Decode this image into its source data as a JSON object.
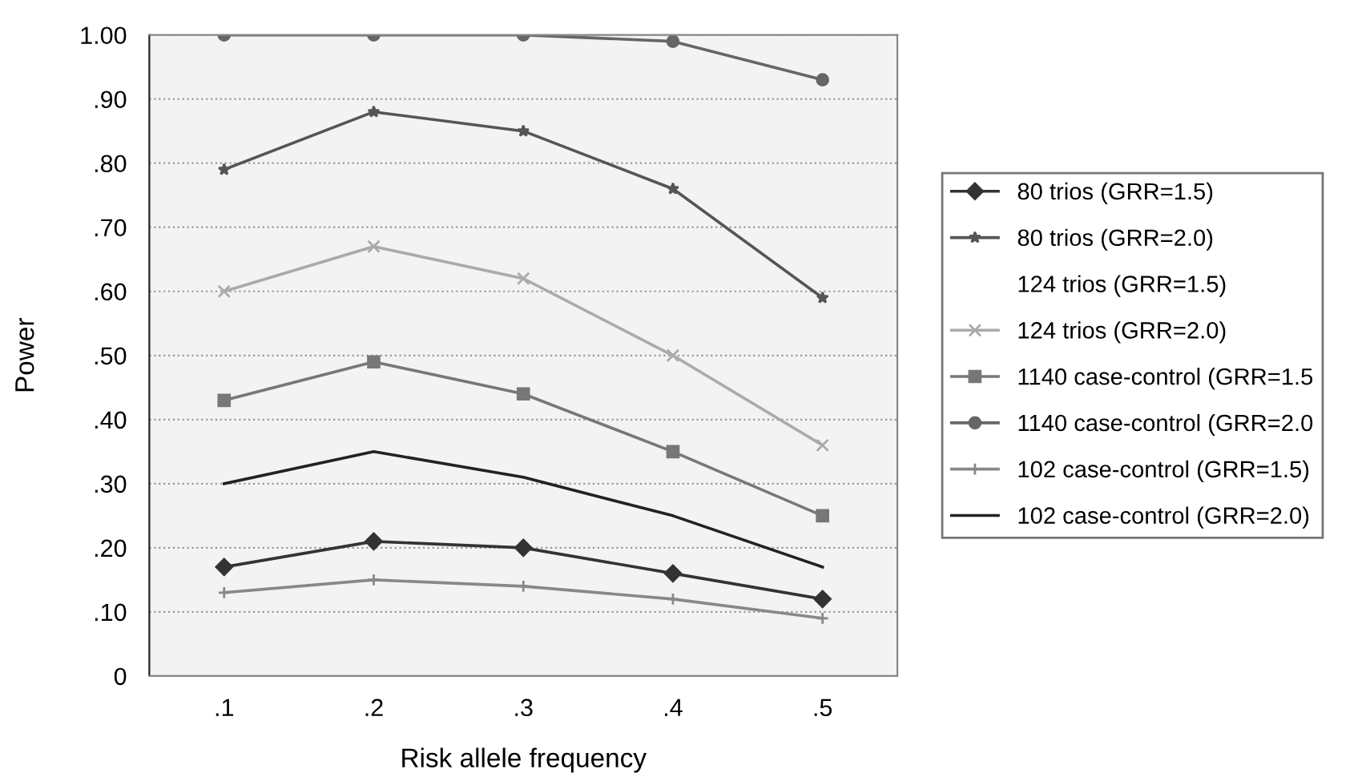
{
  "chart_data": {
    "type": "line",
    "xlabel": "Risk allele frequency",
    "ylabel": "Power",
    "categories": [
      ".1",
      ".2",
      ".3",
      ".4",
      ".5"
    ],
    "ylim": [
      0,
      1.0
    ],
    "yticks": [
      0,
      {
        "value": 0.1,
        "label": ".10"
      },
      {
        "value": 0.2,
        "label": ".20"
      },
      {
        "value": 0.3,
        "label": ".30"
      },
      {
        "value": 0.4,
        "label": ".40"
      },
      {
        "value": 0.5,
        "label": ".50"
      },
      {
        "value": 0.6,
        "label": ".60"
      },
      {
        "value": 0.7,
        "label": ".70"
      },
      {
        "value": 0.8,
        "label": ".80"
      },
      {
        "value": 0.9,
        "label": ".90"
      },
      {
        "value": 1.0,
        "label": "1.00"
      }
    ],
    "grid": "y",
    "legend": "right",
    "series": [
      {
        "name": "80 trios (GRR=1.5)",
        "color": "#333333",
        "marker": "diamond",
        "values": [
          0.17,
          0.21,
          0.2,
          0.16,
          0.12
        ]
      },
      {
        "name": "80 trios (GRR=2.0)",
        "color": "#555555",
        "marker": "star",
        "values": [
          0.79,
          0.88,
          0.85,
          0.76,
          0.59
        ]
      },
      {
        "name": "124 trios (GRR=1.5)",
        "marker": "none",
        "values": [
          null,
          null,
          null,
          null,
          null
        ]
      },
      {
        "name": "124 trios (GRR=2.0)",
        "color": "#aaaaaa",
        "marker": "cross",
        "values": [
          0.6,
          0.67,
          0.62,
          0.5,
          0.36
        ]
      },
      {
        "name": "1140 case-control (GRR=1.5",
        "color": "#777777",
        "marker": "square",
        "values": [
          0.43,
          0.49,
          0.44,
          0.35,
          0.25
        ]
      },
      {
        "name": "1140 case-control (GRR=2.0",
        "color": "#666666",
        "marker": "circle",
        "values": [
          1.0,
          1.0,
          1.0,
          0.99,
          0.93
        ]
      },
      {
        "name": "102 case-control (GRR=1.5)",
        "color": "#888888",
        "marker": "plus",
        "values": [
          0.13,
          0.15,
          0.14,
          0.12,
          0.09
        ]
      },
      {
        "name": "102 case-control (GRR=2.0)",
        "color": "#222222",
        "marker": "none",
        "values": [
          0.3,
          0.35,
          0.31,
          0.25,
          0.17
        ]
      }
    ]
  }
}
